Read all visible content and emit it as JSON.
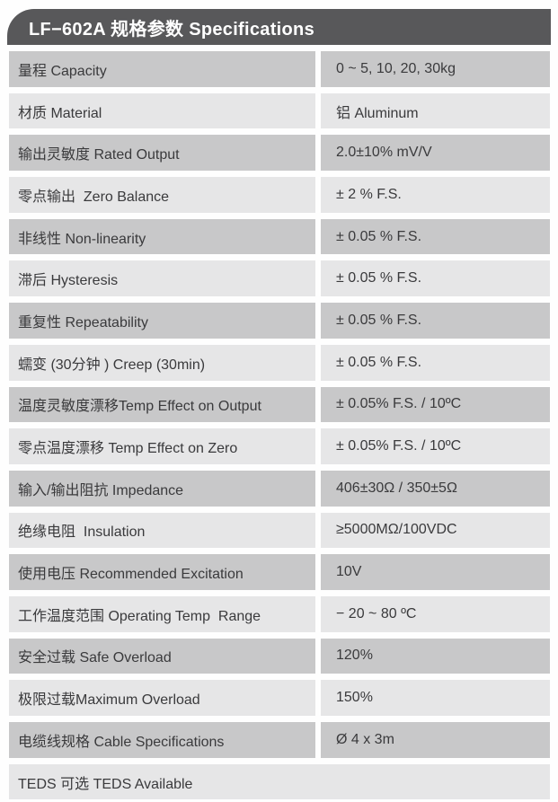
{
  "header": {
    "title": "LF−602A 规格参数 Specifications",
    "background": "#58585a",
    "text_color": "#ffffff"
  },
  "table": {
    "colors": {
      "row_dark": "#c8c8c9",
      "row_light": "#e6e6e7",
      "text": "#3a3a3c",
      "gap": "#fefefe"
    },
    "rows": [
      {
        "label": "量程 Capacity",
        "value": "0 ~ 5, 10, 20, 30kg"
      },
      {
        "label": "材质 Material",
        "value": "铝 Aluminum"
      },
      {
        "label": "输出灵敏度 Rated Output",
        "value": "2.0±10% mV/V"
      },
      {
        "label": "零点输出  Zero Balance",
        "value": "± 2 % F.S."
      },
      {
        "label": "非线性 Non-linearity",
        "value": "± 0.05 % F.S."
      },
      {
        "label": "滞后 Hysteresis",
        "value": "± 0.05 % F.S."
      },
      {
        "label": "重复性 Repeatability",
        "value": "± 0.05 % F.S."
      },
      {
        "label": "蠕变 (30分钟 ) Creep (30min)",
        "value": "± 0.05 % F.S."
      },
      {
        "label": "温度灵敏度漂移Temp Effect on Output",
        "value": "± 0.05% F.S. / 10ºC"
      },
      {
        "label": "零点温度漂移 Temp Effect on Zero",
        "value": "± 0.05% F.S. / 10ºC"
      },
      {
        "label": "输入/输出阻抗 Impedance",
        "value": "406±30Ω / 350±5Ω"
      },
      {
        "label": "绝缘电阻  Insulation",
        "value": "≥5000MΩ/100VDC"
      },
      {
        "label": "使用电压 Recommended Excitation",
        "value": "10V"
      },
      {
        "label": "工作温度范围 Operating Temp  Range",
        "value": "− 20 ~ 80 ºC"
      },
      {
        "label": "安全过载 Safe Overload",
        "value": "120%"
      },
      {
        "label": "极限过载Maximum Overload",
        "value": "150%"
      },
      {
        "label": "电缆线规格 Cable Specifications",
        "value": "Ø 4 x 3m"
      },
      {
        "label": "TEDS 可选 TEDS Available",
        "value": null,
        "full_width": true
      }
    ]
  }
}
